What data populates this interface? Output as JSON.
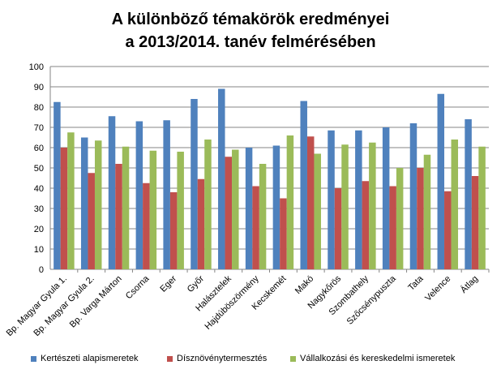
{
  "chart_data": {
    "type": "bar",
    "title_line1": "A különböző témakörök eredményei",
    "title_line2": "a 2013/2014. tanév felmérésében",
    "ylim": [
      0,
      100
    ],
    "yticks": [
      0,
      10,
      20,
      30,
      40,
      50,
      60,
      70,
      80,
      90,
      100
    ],
    "grid": true,
    "legend_position": "bottom",
    "categories": [
      "Bp. Magyar Gyula 1.",
      "Bp. Magyar Gyula 2.",
      "Bp. Varga Márton",
      "Csorna",
      "Eger",
      "Győr",
      "Halásztelek",
      "Hajdúböszörmény",
      "Kecskemét",
      "Makó",
      "Nagykőrös",
      "Szombathely",
      "Szőcsénypuszta",
      "Tata",
      "Velence",
      "Átlag"
    ],
    "series": [
      {
        "name": "Kertészeti alapismeretek",
        "color": "#4F81BD",
        "values": [
          82.5,
          65,
          75.5,
          73,
          73.5,
          84,
          89,
          60,
          61,
          83,
          68.5,
          68.5,
          70,
          72,
          86.5,
          74
        ]
      },
      {
        "name": "Dísznövénytermesztés",
        "color": "#C0504D",
        "values": [
          60,
          47.5,
          52,
          42.5,
          38,
          44.5,
          55.5,
          41,
          35,
          65.5,
          40,
          43.5,
          41,
          50,
          38.5,
          46
        ]
      },
      {
        "name": "Vállalkozási és kereskedelmi ismeretek",
        "color": "#9BBB59",
        "values": [
          67.5,
          63.5,
          60.5,
          58.5,
          58,
          64,
          59,
          52,
          66,
          57,
          61.5,
          62.5,
          50,
          56.5,
          64,
          60.5
        ]
      }
    ]
  }
}
